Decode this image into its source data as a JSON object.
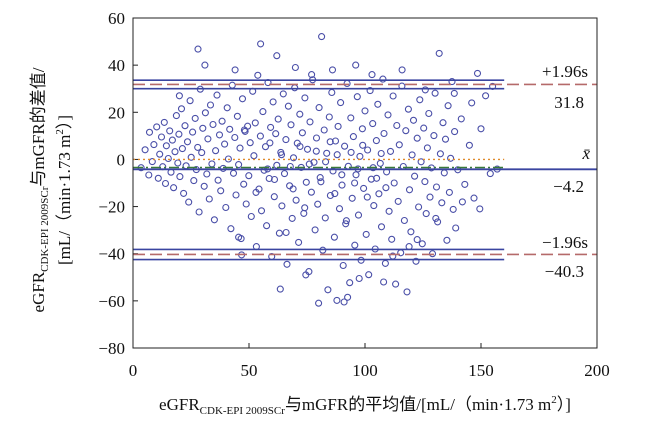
{
  "chart_data": {
    "type": "scatter",
    "title": "",
    "xlabel": {
      "prefix": "eGFR",
      "subscript": "CDK-EPI 2009SCr",
      "rest": "与mGFR的平均值/[mL/（min·1.73 m",
      "sup": "2",
      "close": "）]"
    },
    "ylabel": {
      "line1_prefix": "eGFR",
      "line1_subscript": "CDK-EPI 2009SCr",
      "line1_rest": "与mGFR的差值/",
      "line2_open": "[mL/（min·1.73 m",
      "line2_sup": "2",
      "line2_close": "）]"
    },
    "xlim": [
      0,
      200
    ],
    "ylim": [
      -80,
      60
    ],
    "x_ticks": [
      "0",
      "50",
      "100",
      "150",
      "200"
    ],
    "y_ticks": [
      "60",
      "40",
      "20",
      "0",
      "−20",
      "−40",
      "−60",
      "−80"
    ],
    "grid": false,
    "legend": "none",
    "reference_lines": {
      "upper_loa": {
        "label": "+1.96s",
        "value_label": "31.8",
        "value": 31.8,
        "ci_low": 30.0,
        "ci_high": 33.6,
        "color_ci": "#3a45a0",
        "color_line": "#b56a6a"
      },
      "mean": {
        "label": "x̄",
        "value_label": "−4.2",
        "value": -4.2,
        "ci_low": -4.2,
        "ci_high": -4.2,
        "color_ci": "#3a45a0",
        "color_line": "#3a7a3a"
      },
      "lower_loa": {
        "label": "−1.96s",
        "value_label": "−40.3",
        "value": -40.3,
        "ci_low": -42.5,
        "ci_high": -38.2,
        "color_ci": "#3a45a0",
        "color_line": "#b56a6a"
      },
      "zero_line": {
        "value": 0,
        "color": "#e08a2a"
      }
    },
    "points": [
      [
        3.5,
        -3.5
      ],
      [
        5.2,
        4.1
      ],
      [
        6.8,
        -6.6
      ],
      [
        7.1,
        11.5
      ],
      [
        8.3,
        -0.9
      ],
      [
        9.0,
        6.3
      ],
      [
        10.2,
        13.8
      ],
      [
        10.9,
        -8.0
      ],
      [
        11.5,
        2.2
      ],
      [
        12.3,
        9.5
      ],
      [
        12.8,
        -3.1
      ],
      [
        13.5,
        15.7
      ],
      [
        14.0,
        -10.2
      ],
      [
        14.4,
        5.8
      ],
      [
        15.2,
        0.4
      ],
      [
        15.8,
        12.1
      ],
      [
        16.4,
        -5.4
      ],
      [
        17.0,
        8.2
      ],
      [
        17.5,
        -12.0
      ],
      [
        18.1,
        3.3
      ],
      [
        18.7,
        18.6
      ],
      [
        19.3,
        -1.5
      ],
      [
        19.8,
        10.7
      ],
      [
        20.2,
        -7.3
      ],
      [
        20.9,
        21.5
      ],
      [
        21.3,
        4.6
      ],
      [
        21.8,
        -14.4
      ],
      [
        22.4,
        14.3
      ],
      [
        22.9,
        -2.7
      ],
      [
        23.5,
        7.5
      ],
      [
        24.0,
        -18.1
      ],
      [
        24.6,
        24.9
      ],
      [
        25.1,
        0.9
      ],
      [
        25.7,
        11.6
      ],
      [
        26.2,
        -9.0
      ],
      [
        26.8,
        17.4
      ],
      [
        27.3,
        -4.3
      ],
      [
        27.9,
        5.1
      ],
      [
        28.5,
        -22.3
      ],
      [
        29.0,
        29.8
      ],
      [
        29.6,
        2.9
      ],
      [
        30.1,
        13.2
      ],
      [
        30.7,
        -11.4
      ],
      [
        31.2,
        19.8
      ],
      [
        31.8,
        -6.2
      ],
      [
        32.3,
        8.7
      ],
      [
        32.9,
        -16.8
      ],
      [
        33.4,
        23.1
      ],
      [
        34.0,
        -1.9
      ],
      [
        34.5,
        14.8
      ],
      [
        35.1,
        -25.6
      ],
      [
        35.6,
        3.7
      ],
      [
        36.2,
        27.3
      ],
      [
        36.7,
        -8.8
      ],
      [
        37.3,
        10.4
      ],
      [
        37.8,
        -13.3
      ],
      [
        38.4,
        16.2
      ],
      [
        38.9,
        -3.8
      ],
      [
        39.5,
        6.5
      ],
      [
        40.0,
        -20.4
      ],
      [
        40.6,
        21.9
      ],
      [
        41.1,
        0.2
      ],
      [
        41.7,
        12.8
      ],
      [
        42.2,
        -29.4
      ],
      [
        42.8,
        31.5
      ],
      [
        43.3,
        -5.9
      ],
      [
        43.9,
        9.3
      ],
      [
        44.4,
        -15.1
      ],
      [
        45.0,
        18.3
      ],
      [
        45.5,
        -2.2
      ],
      [
        46.1,
        4.8
      ],
      [
        46.6,
        -33.6
      ],
      [
        47.2,
        25.7
      ],
      [
        47.7,
        -10.5
      ],
      [
        48.3,
        11.9
      ],
      [
        48.8,
        -18.9
      ],
      [
        49.4,
        14.1
      ],
      [
        49.9,
        -6.9
      ],
      [
        50.5,
        7.1
      ],
      [
        51.0,
        -24.2
      ],
      [
        51.6,
        28.9
      ],
      [
        52.1,
        1.6
      ],
      [
        52.7,
        15.5
      ],
      [
        53.2,
        -37.0
      ],
      [
        53.8,
        35.7
      ],
      [
        54.3,
        -12.6
      ],
      [
        54.9,
        9.9
      ],
      [
        55.4,
        -21.8
      ],
      [
        56.0,
        20.3
      ],
      [
        56.5,
        -4.6
      ],
      [
        57.1,
        5.4
      ],
      [
        57.6,
        -28.1
      ],
      [
        58.2,
        32.6
      ],
      [
        58.7,
        -8.1
      ],
      [
        59.3,
        13.6
      ],
      [
        59.8,
        -41.2
      ],
      [
        60.4,
        24.4
      ],
      [
        60.9,
        -15.8
      ],
      [
        61.5,
        10.9
      ],
      [
        62.0,
        -2.5
      ],
      [
        62.6,
        17.1
      ],
      [
        63.1,
        -31.3
      ],
      [
        63.7,
        3.0
      ],
      [
        64.2,
        -19.7
      ],
      [
        64.8,
        27.8
      ],
      [
        65.3,
        -6.0
      ],
      [
        65.9,
        8.4
      ],
      [
        66.4,
        -44.5
      ],
      [
        67.0,
        22.6
      ],
      [
        67.5,
        -11.2
      ],
      [
        68.1,
        14.7
      ],
      [
        68.6,
        -25.0
      ],
      [
        69.2,
        0.7
      ],
      [
        69.7,
        30.4
      ],
      [
        70.3,
        -17.3
      ],
      [
        70.8,
        6.9
      ],
      [
        71.4,
        -35.2
      ],
      [
        71.9,
        19.2
      ],
      [
        72.5,
        -3.4
      ],
      [
        73.0,
        11.3
      ],
      [
        73.6,
        -22.9
      ],
      [
        74.1,
        26.1
      ],
      [
        74.7,
        -9.7
      ],
      [
        75.2,
        4.3
      ],
      [
        75.8,
        -47.6
      ],
      [
        76.3,
        15.9
      ],
      [
        76.9,
        -13.9
      ],
      [
        77.4,
        33.8
      ],
      [
        78.0,
        -1.2
      ],
      [
        78.5,
        -29.9
      ],
      [
        79.1,
        9.1
      ],
      [
        79.6,
        -19.0
      ],
      [
        80.2,
        22.0
      ],
      [
        80.7,
        -7.7
      ],
      [
        81.3,
        52.1
      ],
      [
        81.8,
        -38.5
      ],
      [
        82.4,
        12.5
      ],
      [
        82.9,
        -24.8
      ],
      [
        83.5,
        2.6
      ],
      [
        84.0,
        -55.3
      ],
      [
        84.6,
        18.0
      ],
      [
        85.1,
        -15.3
      ],
      [
        85.7,
        28.4
      ],
      [
        86.2,
        -4.9
      ],
      [
        86.8,
        -33.0
      ],
      [
        87.3,
        7.8
      ],
      [
        87.9,
        -59.8
      ],
      [
        88.4,
        14.0
      ],
      [
        89.0,
        -20.9
      ],
      [
        89.5,
        24.1
      ],
      [
        90.1,
        -10.9
      ],
      [
        90.6,
        -45.0
      ],
      [
        91.2,
        5.6
      ],
      [
        91.7,
        -27.3
      ],
      [
        92.3,
        32.2
      ],
      [
        92.8,
        -2.9
      ],
      [
        93.4,
        -52.3
      ],
      [
        93.9,
        17.6
      ],
      [
        94.5,
        -16.5
      ],
      [
        95.0,
        9.7
      ],
      [
        95.6,
        -36.4
      ],
      [
        96.1,
        -6.5
      ],
      [
        96.7,
        26.6
      ],
      [
        97.2,
        -23.6
      ],
      [
        97.8,
        1.3
      ],
      [
        98.3,
        -42.8
      ],
      [
        98.9,
        13.0
      ],
      [
        99.4,
        -12.3
      ],
      [
        100.0,
        20.6
      ],
      [
        100.5,
        -31.8
      ],
      [
        101.1,
        4.0
      ],
      [
        101.6,
        -48.9
      ],
      [
        102.2,
        29.2
      ],
      [
        102.7,
        -8.4
      ],
      [
        103.3,
        15.2
      ],
      [
        103.8,
        -19.6
      ],
      [
        104.4,
        -38.0
      ],
      [
        104.9,
        8.0
      ],
      [
        105.5,
        23.4
      ],
      [
        106.0,
        -14.6
      ],
      [
        106.6,
        -1.7
      ],
      [
        107.1,
        -28.6
      ],
      [
        107.7,
        34.1
      ],
      [
        108.2,
        11.0
      ],
      [
        108.8,
        -44.1
      ],
      [
        109.3,
        -5.3
      ],
      [
        109.9,
        18.9
      ],
      [
        110.4,
        -22.0
      ],
      [
        111.0,
        3.4
      ],
      [
        111.5,
        -33.9
      ],
      [
        112.1,
        26.9
      ],
      [
        112.6,
        -10.0
      ],
      [
        113.2,
        -52.9
      ],
      [
        113.7,
        14.4
      ],
      [
        114.3,
        -17.8
      ],
      [
        114.8,
        6.2
      ],
      [
        115.4,
        -39.6
      ],
      [
        115.9,
        31.1
      ],
      [
        116.5,
        -3.0
      ],
      [
        117.0,
        -25.9
      ],
      [
        117.6,
        12.2
      ],
      [
        118.1,
        -56.2
      ],
      [
        118.7,
        21.3
      ],
      [
        119.2,
        -12.9
      ],
      [
        119.8,
        -30.7
      ],
      [
        120.3,
        1.9
      ],
      [
        120.9,
        16.6
      ],
      [
        121.4,
        -7.1
      ],
      [
        122.0,
        -43.2
      ],
      [
        122.5,
        9.0
      ],
      [
        123.1,
        -20.2
      ],
      [
        123.6,
        25.3
      ],
      [
        124.2,
        -1.0
      ],
      [
        124.7,
        -35.8
      ],
      [
        125.3,
        13.3
      ],
      [
        125.8,
        -9.4
      ],
      [
        126.4,
        -23.0
      ],
      [
        126.9,
        4.9
      ],
      [
        127.5,
        19.5
      ],
      [
        128.0,
        -16.0
      ],
      [
        128.6,
        -3.6
      ],
      [
        129.1,
        -40.0
      ],
      [
        129.7,
        10.1
      ],
      [
        130.2,
        28.1
      ],
      [
        130.8,
        -11.7
      ],
      [
        131.3,
        -26.5
      ],
      [
        132.0,
        45.0
      ],
      [
        132.5,
        2.4
      ],
      [
        133.1,
        -18.4
      ],
      [
        133.6,
        15.6
      ],
      [
        134.2,
        -5.7
      ],
      [
        134.7,
        8.6
      ],
      [
        135.3,
        -34.3
      ],
      [
        135.8,
        22.8
      ],
      [
        136.4,
        -14.0
      ],
      [
        136.9,
        0.5
      ],
      [
        137.5,
        33.0
      ],
      [
        138.0,
        -21.2
      ],
      [
        138.6,
        11.8
      ],
      [
        139.1,
        -29.1
      ],
      [
        140.0,
        -4.4
      ],
      [
        141.5,
        17.2
      ],
      [
        143.0,
        -10.6
      ],
      [
        145.0,
        6.0
      ],
      [
        147.0,
        -16.4
      ],
      [
        148.5,
        36.5
      ],
      [
        149.5,
        -21.0
      ],
      [
        152.0,
        27.0
      ],
      [
        155.0,
        31.0
      ],
      [
        157.0,
        -4.1
      ],
      [
        20.0,
        27.0
      ],
      [
        28.0,
        46.8
      ],
      [
        31.0,
        40.0
      ],
      [
        44.0,
        38.0
      ],
      [
        55.0,
        49.0
      ],
      [
        62.0,
        44.0
      ],
      [
        63.5,
        -55.0
      ],
      [
        66.0,
        -31.0
      ],
      [
        70.0,
        39.0
      ],
      [
        74.5,
        -49.0
      ],
      [
        77.0,
        36.0
      ],
      [
        80.0,
        -61.0
      ],
      [
        86.0,
        38.0
      ],
      [
        91.0,
        -60.5
      ],
      [
        92.5,
        -58.5
      ],
      [
        96.0,
        40.0
      ],
      [
        97.5,
        -50.5
      ],
      [
        103.0,
        36.0
      ],
      [
        108.0,
        -52.0
      ],
      [
        112.0,
        -41.0
      ],
      [
        116.0,
        38.0
      ],
      [
        119.0,
        -37.0
      ],
      [
        122.5,
        -34.0
      ],
      [
        126.0,
        29.5
      ],
      [
        130.5,
        -25.0
      ],
      [
        138.5,
        28.0
      ],
      [
        142.0,
        -18.0
      ],
      [
        146.0,
        24.0
      ],
      [
        150.0,
        13.0
      ],
      [
        154.0,
        -6.0
      ],
      [
        45.5,
        -33.0
      ],
      [
        46.8,
        -40.5
      ],
      [
        48.0,
        12.5
      ],
      [
        53.0,
        -14.0
      ],
      [
        58.0,
        -4.0
      ],
      [
        59.0,
        7.0
      ],
      [
        61.0,
        -8.5
      ],
      [
        64.0,
        2.0
      ],
      [
        67.8,
        -3.0
      ],
      [
        69.0,
        -12.5
      ],
      [
        72.0,
        5.5
      ],
      [
        74.0,
        -20.5
      ],
      [
        76.0,
        -2.0
      ],
      [
        79.0,
        3.5
      ],
      [
        81.0,
        -9.5
      ],
      [
        83.0,
        -1.0
      ],
      [
        85.0,
        7.5
      ],
      [
        87.0,
        -14.5
      ],
      [
        88.0,
        2.0
      ],
      [
        90.0,
        -6.5
      ],
      [
        92.0,
        -26.0
      ],
      [
        94.0,
        3.0
      ],
      [
        95.5,
        -10.0
      ],
      [
        97.0,
        -4.0
      ],
      [
        99.0,
        6.0
      ],
      [
        101.0,
        -16.0
      ],
      [
        103.5,
        -3.5
      ],
      [
        105.0,
        -8.0
      ],
      [
        107.0,
        2.5
      ],
      [
        109.0,
        -12.0
      ]
    ]
  }
}
